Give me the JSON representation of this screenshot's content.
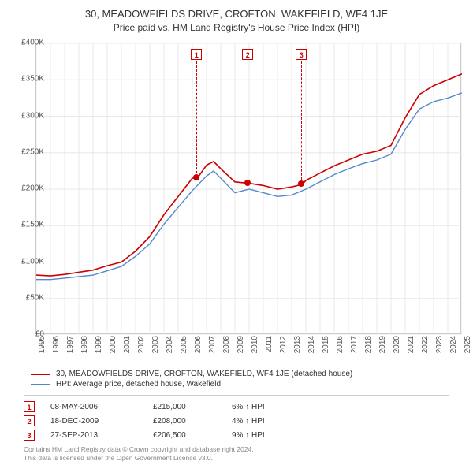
{
  "title1": "30, MEADOWFIELDS DRIVE, CROFTON, WAKEFIELD, WF4 1JE",
  "title2": "Price paid vs. HM Land Registry's House Price Index (HPI)",
  "chart": {
    "type": "line",
    "background_color": "#ffffff",
    "grid_color": "#e8e8e8",
    "border_color": "#cccccc",
    "ylim": [
      0,
      400000
    ],
    "ytick_step": 50000,
    "yticks": [
      "£0",
      "£50K",
      "£100K",
      "£150K",
      "£200K",
      "£250K",
      "£300K",
      "£350K",
      "£400K"
    ],
    "xlim": [
      1995,
      2025
    ],
    "xticks": [
      "1995",
      "1996",
      "1997",
      "1998",
      "1999",
      "2000",
      "2001",
      "2002",
      "2003",
      "2004",
      "2005",
      "2006",
      "2007",
      "2008",
      "2009",
      "2010",
      "2011",
      "2012",
      "2013",
      "2014",
      "2015",
      "2016",
      "2017",
      "2018",
      "2019",
      "2020",
      "2021",
      "2022",
      "2023",
      "2024",
      "2025"
    ],
    "series": [
      {
        "name": "property",
        "label": "30, MEADOWFIELDS DRIVE, CROFTON, WAKEFIELD, WF4 1JE (detached house)",
        "color": "#cc0000",
        "line_width": 1.6,
        "data": [
          [
            1995,
            82000
          ],
          [
            1996,
            81000
          ],
          [
            1997,
            83000
          ],
          [
            1998,
            86000
          ],
          [
            1999,
            89000
          ],
          [
            2000,
            95000
          ],
          [
            2001,
            100000
          ],
          [
            2002,
            115000
          ],
          [
            2003,
            135000
          ],
          [
            2004,
            165000
          ],
          [
            2005,
            190000
          ],
          [
            2006,
            215000
          ],
          [
            2006.35,
            215000
          ],
          [
            2007,
            233000
          ],
          [
            2007.5,
            238000
          ],
          [
            2008,
            228000
          ],
          [
            2009,
            210000
          ],
          [
            2009.96,
            208000
          ],
          [
            2010,
            208000
          ],
          [
            2011,
            205000
          ],
          [
            2012,
            200000
          ],
          [
            2013,
            203000
          ],
          [
            2013.74,
            206500
          ],
          [
            2014,
            212000
          ],
          [
            2015,
            222000
          ],
          [
            2016,
            232000
          ],
          [
            2017,
            240000
          ],
          [
            2018,
            248000
          ],
          [
            2019,
            252000
          ],
          [
            2020,
            260000
          ],
          [
            2021,
            298000
          ],
          [
            2022,
            330000
          ],
          [
            2023,
            342000
          ],
          [
            2024,
            350000
          ],
          [
            2025,
            358000
          ]
        ]
      },
      {
        "name": "hpi",
        "label": "HPI: Average price, detached house, Wakefield",
        "color": "#5588cc",
        "line_width": 1.4,
        "data": [
          [
            1995,
            76000
          ],
          [
            1996,
            76000
          ],
          [
            1997,
            78000
          ],
          [
            1998,
            80000
          ],
          [
            1999,
            82000
          ],
          [
            2000,
            88000
          ],
          [
            2001,
            94000
          ],
          [
            2002,
            108000
          ],
          [
            2003,
            125000
          ],
          [
            2004,
            152000
          ],
          [
            2005,
            175000
          ],
          [
            2006,
            198000
          ],
          [
            2007,
            218000
          ],
          [
            2007.5,
            225000
          ],
          [
            2008,
            215000
          ],
          [
            2009,
            195000
          ],
          [
            2010,
            200000
          ],
          [
            2011,
            195000
          ],
          [
            2012,
            190000
          ],
          [
            2013,
            192000
          ],
          [
            2014,
            200000
          ],
          [
            2015,
            210000
          ],
          [
            2016,
            220000
          ],
          [
            2017,
            228000
          ],
          [
            2018,
            235000
          ],
          [
            2019,
            240000
          ],
          [
            2020,
            248000
          ],
          [
            2021,
            282000
          ],
          [
            2022,
            310000
          ],
          [
            2023,
            320000
          ],
          [
            2024,
            325000
          ],
          [
            2025,
            332000
          ]
        ]
      }
    ],
    "markers": [
      {
        "num": "1",
        "x": 2006.35,
        "y": 215000
      },
      {
        "num": "2",
        "x": 2009.96,
        "y": 208000
      },
      {
        "num": "3",
        "x": 2013.74,
        "y": 206500
      }
    ]
  },
  "legend": {
    "border_color": "#cccccc"
  },
  "transactions": [
    {
      "num": "1",
      "date": "08-MAY-2006",
      "price": "£215,000",
      "pct": "6% ↑ HPI"
    },
    {
      "num": "2",
      "date": "18-DEC-2009",
      "price": "£208,000",
      "pct": "4% ↑ HPI"
    },
    {
      "num": "3",
      "date": "27-SEP-2013",
      "price": "£206,500",
      "pct": "9% ↑ HPI"
    }
  ],
  "footer_line1": "Contains HM Land Registry data © Crown copyright and database right 2024.",
  "footer_line2": "This data is licensed under the Open Government Licence v3.0."
}
